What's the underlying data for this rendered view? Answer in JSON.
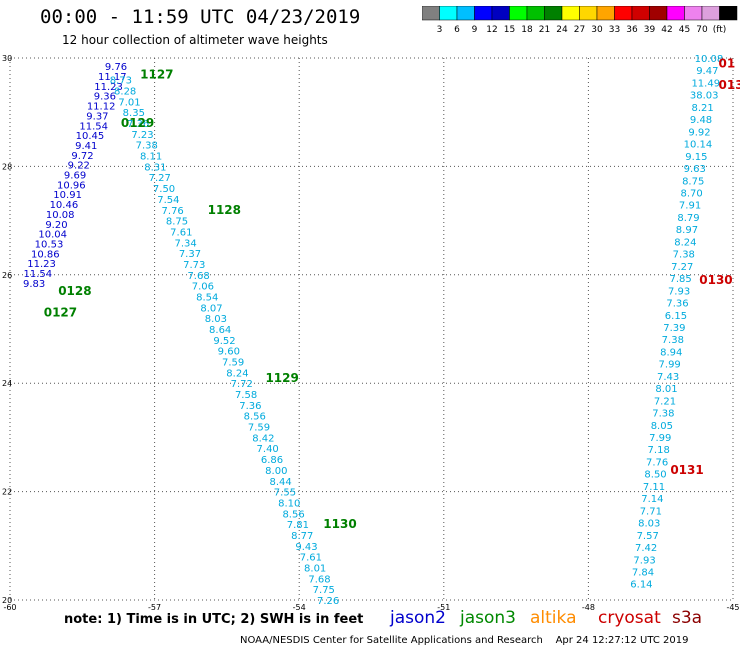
{
  "header": {
    "title": "00:00 - 11:59 UTC 04/23/2019",
    "subtitle": "12 hour collection of altimeter wave heights"
  },
  "colorbar": {
    "colors": [
      "#808080",
      "#00ffff",
      "#00bfff",
      "#0000ff",
      "#0000c0",
      "#00ff00",
      "#00c000",
      "#008000",
      "#ffff00",
      "#ffd700",
      "#ffa500",
      "#ff0000",
      "#d00000",
      "#a00000",
      "#ff00ff",
      "#ee82ee",
      "#dda0dd",
      "#000000"
    ],
    "labels": [
      "3",
      "6",
      "9",
      "12",
      "15",
      "18",
      "21",
      "24",
      "27",
      "30",
      "33",
      "36",
      "39",
      "42",
      "45",
      "70",
      "(ft)"
    ]
  },
  "note": "note: 1) Time is in UTC; 2) SWH is in feet",
  "satellites": [
    {
      "name": "jason2",
      "color": "#0000cc"
    },
    {
      "name": "jason3",
      "color": "#008800"
    },
    {
      "name": "altika",
      "color": "#ff8c00"
    },
    {
      "name": "cryosat",
      "color": "#cc0000"
    },
    {
      "name": "s3a",
      "color": "#8b0000"
    }
  ],
  "footer": "NOAA/NESDIS Center for Satellite Applications and Research    Apr 24 12:27:12 UTC 2019",
  "chart_data": {
    "type": "scatter",
    "xlim": [
      -60,
      -45
    ],
    "ylim": [
      20,
      30
    ],
    "x_ticks": [
      "-60",
      "-57",
      "-54",
      "-51",
      "-48",
      "-45"
    ],
    "y_ticks": [
      "30",
      "28",
      "26",
      "24",
      "22",
      "20"
    ],
    "grid": true,
    "track_labels": [
      {
        "text": "1127",
        "lon": -57.3,
        "lat": 29.7,
        "color": "#008000"
      },
      {
        "text": "0129",
        "lon": -57.7,
        "lat": 28.8,
        "color": "#008000"
      },
      {
        "text": "1128",
        "lon": -55.9,
        "lat": 27.2,
        "color": "#008000"
      },
      {
        "text": "0128",
        "lon": -59.0,
        "lat": 25.7,
        "color": "#008000"
      },
      {
        "text": "0127",
        "lon": -59.3,
        "lat": 25.3,
        "color": "#008000"
      },
      {
        "text": "1129",
        "lon": -54.7,
        "lat": 24.1,
        "color": "#008000"
      },
      {
        "text": "1130",
        "lon": -53.5,
        "lat": 21.4,
        "color": "#008000"
      },
      {
        "text": "01",
        "lon": -45.3,
        "lat": 29.9,
        "color": "#cc0000"
      },
      {
        "text": "013",
        "lon": -45.3,
        "lat": 29.5,
        "color": "#cc0000"
      },
      {
        "text": "0130",
        "lon": -45.7,
        "lat": 25.9,
        "color": "#cc0000"
      },
      {
        "text": "0131",
        "lon": -46.3,
        "lat": 22.4,
        "color": "#cc0000"
      }
    ],
    "series": [
      {
        "name": "0127/0128 track (jason2)",
        "color": "#0000cc",
        "lon_start": -57.8,
        "lat_start": 29.85,
        "lon_end": -59.5,
        "lat_end": 25.85,
        "values": [
          "9.76",
          "11.17",
          "11.23",
          "9.36",
          "11.12",
          "9.37",
          "11.54",
          "10.45",
          "9.41",
          "9.72",
          "9.22",
          "9.69",
          "10.96",
          "10.91",
          "10.46",
          "10.08",
          "9.20",
          "10.04",
          "10.53",
          "10.86",
          "11.23",
          "11.54",
          "9.83"
        ]
      },
      {
        "name": "1127-1130 track (jason3)",
        "color": "#00aadd",
        "lon_start": -57.7,
        "lat_start": 29.6,
        "lon_end": -53.4,
        "lat_end": 20.0,
        "values": [
          "8.73",
          "8.28",
          "7.01",
          "8.35",
          "7.36",
          "7.23",
          "7.38",
          "8.11",
          "8.31",
          "7.27",
          "7.50",
          "7.54",
          "7.76",
          "8.75",
          "7.61",
          "7.34",
          "7.37",
          "7.73",
          "7.68",
          "7.06",
          "8.54",
          "8.07",
          "8.03",
          "8.64",
          "9.52",
          "9.60",
          "7.59",
          "8.24",
          "7.72",
          "7.58",
          "7.36",
          "8.56",
          "7.59",
          "8.42",
          "7.40",
          "6.86",
          "8.00",
          "8.44",
          "7.55",
          "8.10",
          "8.56",
          "7.81",
          "8.77",
          "9.43",
          "7.61",
          "8.01",
          "7.68",
          "7.75",
          "7.26"
        ]
      },
      {
        "name": "0130/0131 track (cryosat)",
        "color": "#00aadd",
        "lon_start": -45.5,
        "lat_start": 30.0,
        "lon_end": -46.9,
        "lat_end": 20.3,
        "values": [
          "10.08",
          "9.47",
          "11.49",
          "38.03",
          "8.21",
          "9.48",
          "9.92",
          "10.14",
          "9.15",
          "9.63",
          "8.75",
          "8.70",
          "7.91",
          "8.79",
          "8.97",
          "8.24",
          "7.38",
          "7.27",
          "7.85",
          "7.93",
          "7.36",
          "6.15",
          "7.39",
          "7.38",
          "8.94",
          "7.99",
          "7.43",
          "8.01",
          "7.21",
          "7.38",
          "8.05",
          "7.99",
          "7.18",
          "7.76",
          "8.50",
          "7.11",
          "7.14",
          "7.71",
          "8.03",
          "7.57",
          "7.42",
          "7.93",
          "7.84",
          "6.14"
        ]
      }
    ]
  }
}
